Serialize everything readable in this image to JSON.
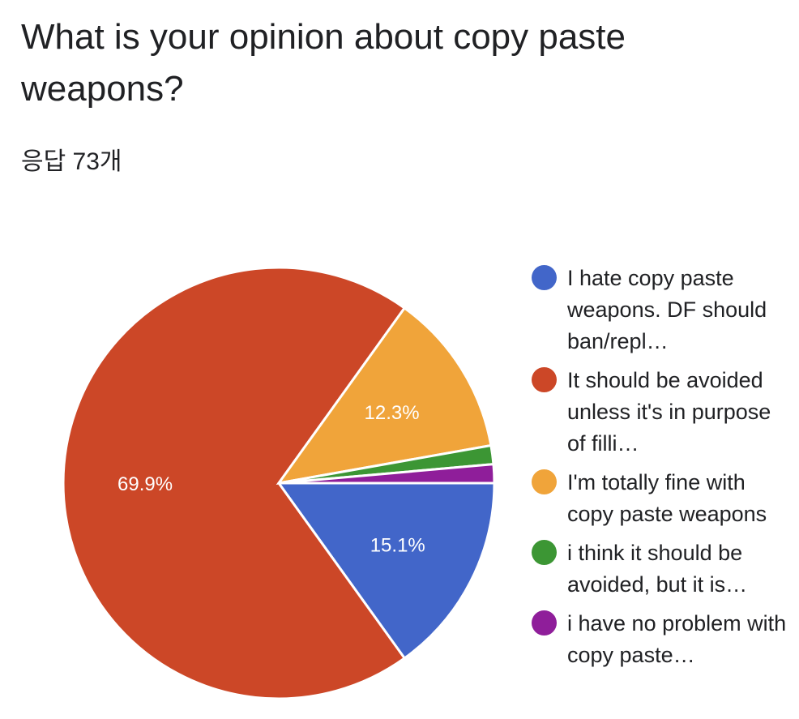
{
  "header": {
    "title": "What is your opinion about copy paste weapons?",
    "response_count": "응답 73개"
  },
  "chart_data": {
    "type": "pie",
    "title": "What is your opinion about copy paste weapons?",
    "start_angle_deg": 0,
    "direction": "counterclockwise-from-east-shown-clockwise",
    "slices": [
      {
        "label": "I hate copy paste weapons. DF should ban/repl…",
        "value": 15.1,
        "color": "#4266c9",
        "data_label": "15.1%"
      },
      {
        "label": "It should be avoided unless it's in purpose of filli…",
        "value": 69.9,
        "color": "#cc4727",
        "data_label": "69.9%"
      },
      {
        "label": "I'm totally fine with copy paste weapons",
        "value": 12.3,
        "color": "#f0a43a",
        "data_label": "12.3%"
      },
      {
        "label": "i think it should be avoided, but it is…",
        "value": 1.4,
        "color": "#3c9634",
        "data_label": ""
      },
      {
        "label": "i have no problem with copy paste…",
        "value": 1.4,
        "color": "#8f1e9a",
        "data_label": ""
      }
    ],
    "legend_position": "right"
  }
}
